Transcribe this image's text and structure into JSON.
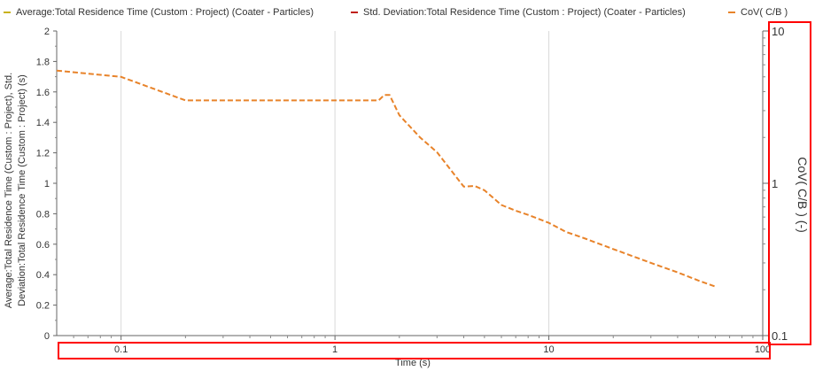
{
  "chart_data": {
    "type": "line",
    "xlabel": "Time (s)",
    "ylabel": "Average:Total Residence Time (Custom : Project), Std. Deviation:Total Residence Time (Custom : Project) (s)",
    "y2label": "CoV( C/B ) (-)",
    "x_scale": "log",
    "xlim": [
      0.05,
      100
    ],
    "ylim": [
      0,
      2
    ],
    "y2_scale": "log",
    "y2lim": [
      0.1,
      10
    ],
    "x_ticks": [
      "0.1",
      "1",
      "10",
      "100"
    ],
    "y_ticks": [
      "0",
      "0.2",
      "0.4",
      "0.6",
      "0.8",
      "1",
      "1.2",
      "1.4",
      "1.6",
      "1.8",
      "2"
    ],
    "y2_ticks": [
      "0.1",
      "1",
      "10"
    ],
    "grid": true,
    "legend_position": "top",
    "series": [
      {
        "name": "Average:Total Residence Time (Custom : Project) (Coater - Particles)",
        "color": "#c9b21a",
        "axis": "left",
        "x": [],
        "y": []
      },
      {
        "name": "Std. Deviation:Total Residence Time (Custom : Project) (Coater - Particles)",
        "color": "#c0201a",
        "axis": "left",
        "x": [],
        "y": []
      },
      {
        "name": "CoV( C/B )",
        "color": "#e8832a",
        "axis": "right",
        "style": "dashed",
        "x": [
          0.05,
          0.1,
          0.2,
          0.3,
          0.5,
          1,
          1.5,
          1.6,
          1.7,
          1.8,
          2,
          2.5,
          3,
          4,
          4.5,
          5,
          6,
          7,
          8,
          10,
          12,
          15,
          20,
          30,
          40,
          50,
          60
        ],
        "y": [
          5.5,
          5.0,
          3.5,
          3.5,
          3.5,
          3.5,
          3.5,
          3.5,
          3.8,
          3.8,
          2.8,
          2.0,
          1.6,
          0.95,
          0.96,
          0.9,
          0.72,
          0.66,
          0.62,
          0.55,
          0.48,
          0.43,
          0.37,
          0.3,
          0.26,
          0.23,
          0.21
        ]
      }
    ]
  },
  "legend": {
    "items": [
      {
        "label": "Average:Total Residence Time (Custom : Project) (Coater - Particles)",
        "color": "#c9b21a"
      },
      {
        "label": "Std. Deviation:Total Residence Time (Custom : Project) (Coater - Particles)",
        "color": "#c0201a"
      },
      {
        "label": "CoV( C/B )",
        "color": "#e8832a"
      }
    ]
  },
  "highlights": {
    "color": "#ff0000"
  }
}
